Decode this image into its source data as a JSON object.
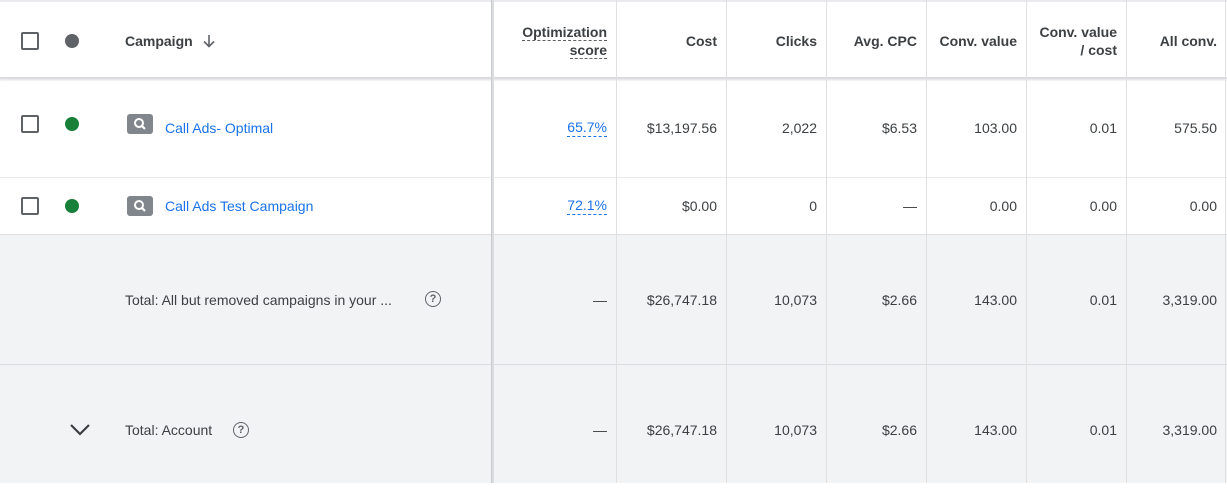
{
  "header": {
    "campaign": "Campaign",
    "opt_line1": "Optimization",
    "opt_line2": "score",
    "cost": "Cost",
    "clicks": "Clicks",
    "avg_cpc": "Avg. CPC",
    "conv_value": "Conv. value",
    "conv_value_cost_line1": "Conv. value",
    "conv_value_cost_line2": "/ cost",
    "all_conv": "All conv."
  },
  "rows": [
    {
      "campaign": "Call Ads- Optimal",
      "status_color": "#188038",
      "optimization_score": "65.7%",
      "cost": "$13,197.56",
      "clicks": "2,022",
      "avg_cpc": "$6.53",
      "conv_value": "103.00",
      "conv_value_cost": "0.01",
      "all_conv": "575.50"
    },
    {
      "campaign": "Call Ads Test Campaign",
      "status_color": "#188038",
      "optimization_score": "72.1%",
      "cost": "$0.00",
      "clicks": "0",
      "avg_cpc": "—",
      "conv_value": "0.00",
      "conv_value_cost": "0.00",
      "all_conv": "0.00"
    }
  ],
  "totals": [
    {
      "label": "Total: All but removed campaigns in your ...",
      "optimization_score": "—",
      "cost": "$26,747.18",
      "clicks": "10,073",
      "avg_cpc": "$2.66",
      "conv_value": "143.00",
      "conv_value_cost": "0.01",
      "all_conv": "3,319.00"
    },
    {
      "label": "Total: Account",
      "optimization_score": "—",
      "cost": "$26,747.18",
      "clicks": "10,073",
      "avg_cpc": "$2.66",
      "conv_value": "143.00",
      "conv_value_cost": "0.01",
      "all_conv": "3,319.00"
    }
  ],
  "icons": {
    "sort": "arrow-down-icon",
    "campaign_type": "search-icon",
    "help": "help-icon",
    "expand": "chevron-down-icon"
  },
  "colors": {
    "link": "#1a73e8",
    "enabled": "#188038",
    "total_bg": "#f1f3f4"
  }
}
